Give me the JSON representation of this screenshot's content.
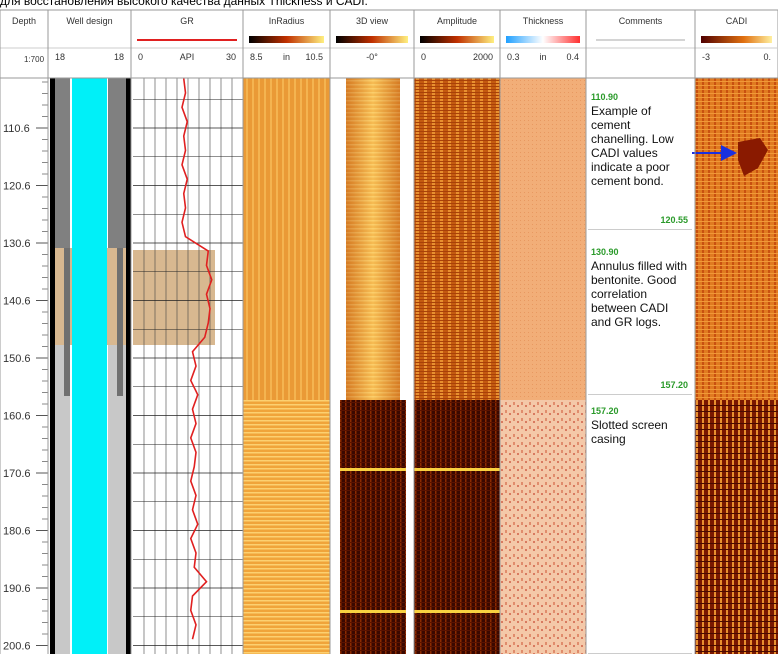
{
  "caption": "для восстановления высокого качества данных Thickness и CADI.",
  "headers": [
    {
      "title": "Depth",
      "labels": [
        "1:700"
      ]
    },
    {
      "title": "Well design",
      "labels": [
        "18",
        "18"
      ]
    },
    {
      "title": "GR",
      "labels": [
        0,
        "API",
        30
      ]
    },
    {
      "title": "InRadius",
      "labels": [
        "8.5",
        "in",
        "10.5"
      ]
    },
    {
      "title": "3D view",
      "labels": [
        "-0°"
      ]
    },
    {
      "title": "Amplitude",
      "labels": [
        "0",
        "2000"
      ]
    },
    {
      "title": "Thickness",
      "labels": [
        "0.3",
        "in",
        "0.4"
      ]
    },
    {
      "title": "Comments",
      "labels": []
    },
    {
      "title": "CADI",
      "labels": [
        "-3",
        "0."
      ]
    }
  ],
  "depth_labels": [
    110.6,
    120.6,
    130.6,
    140.6,
    150.6,
    160.6,
    170.6,
    180.6,
    190.6,
    200.6
  ],
  "gr_curve": {
    "depths": [
      102,
      104.5,
      107,
      109.5,
      112,
      114.5,
      117,
      119.5,
      122,
      124.5,
      127,
      129.5,
      132,
      134.5,
      137,
      139.5,
      142,
      144.5,
      147,
      149.5,
      152,
      154.5,
      157,
      159.5,
      162,
      164.5,
      167,
      169.5,
      172,
      174.5,
      177,
      179.5,
      182,
      184.5,
      187,
      189.5,
      192,
      194.5,
      197,
      199.5
    ],
    "values": [
      14.5,
      15,
      14,
      15.5,
      14.5,
      15,
      14,
      15.5,
      14.5,
      15,
      14,
      15,
      21.5,
      21,
      22.5,
      21,
      22,
      21.5,
      20.5,
      17,
      18,
      16.5,
      18.5,
      17,
      18,
      16.5,
      18,
      17.5,
      16.5,
      18,
      17,
      18.5,
      16.5,
      18,
      17.5,
      21,
      17,
      16.5,
      18,
      17
    ]
  },
  "comments": [
    {
      "top": "110.90",
      "text": "Example of cement chanelling. Low CADI values indicate a poor cement bond.",
      "bottom": "120.55"
    },
    {
      "top": "130.90",
      "text": "Annulus filled with bentonite. Good correlation between CADI and GR logs.",
      "bottom": "157.20"
    },
    {
      "top": "157.20",
      "text": "Slotted screen casing"
    }
  ]
}
